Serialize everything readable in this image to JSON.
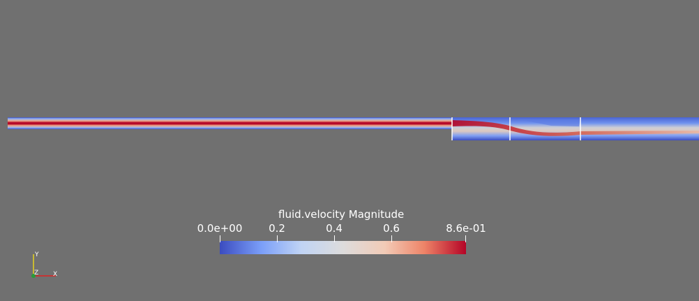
{
  "colorbar": {
    "title": "fluid.velocity Magnitude",
    "ticks": [
      "0.0e+00",
      "0.2",
      "0.4",
      "0.6",
      "8.6e-01"
    ],
    "tick_values": [
      0.0,
      0.2,
      0.4,
      0.6,
      0.86
    ],
    "range": [
      0.0,
      0.86
    ],
    "colors": [
      "#3b4cc0",
      "#7b9ff9",
      "#c0d4f5",
      "#dddcdc",
      "#f2cbb7",
      "#ee8468",
      "#b40426"
    ]
  },
  "axes_triad": {
    "x_label": "X",
    "y_label": "Y",
    "z_label": "Z"
  },
  "scene": {
    "background": "#707070"
  }
}
